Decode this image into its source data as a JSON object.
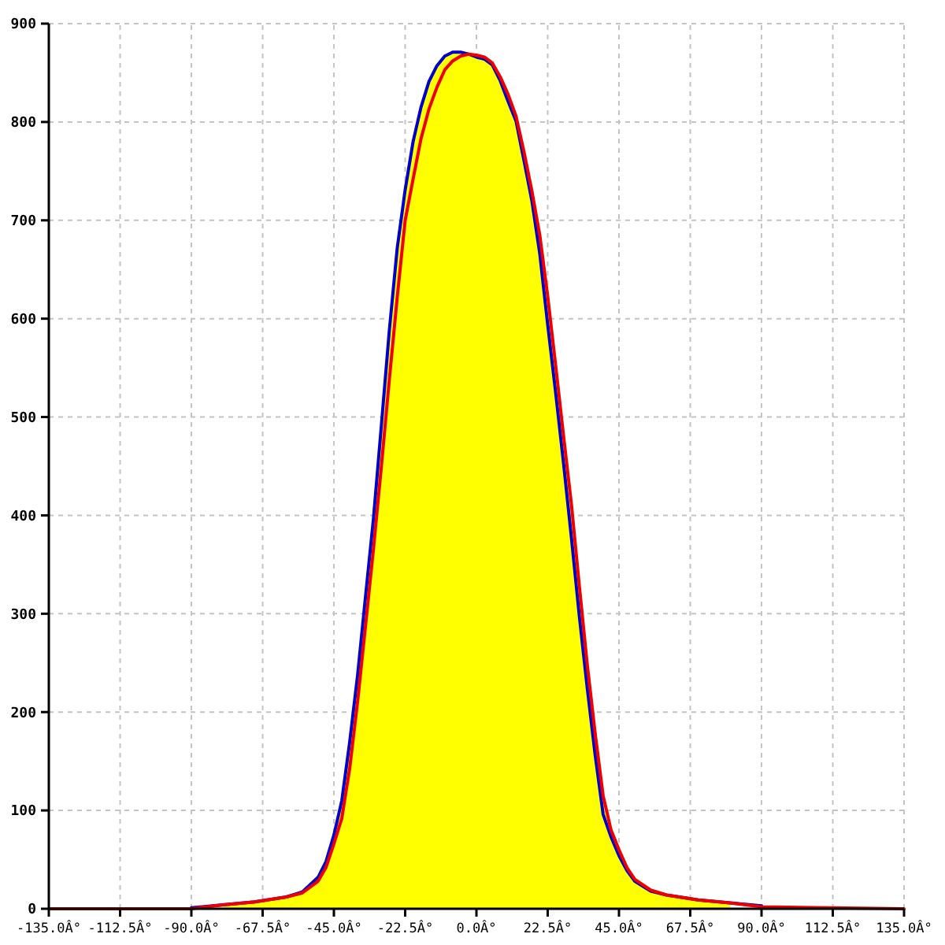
{
  "chart_data": {
    "type": "line",
    "xlim": [
      -135,
      135
    ],
    "ylim": [
      0,
      900
    ],
    "xticks": [
      {
        "value": -135,
        "label": "-135.0Â°"
      },
      {
        "value": -112.5,
        "label": "-112.5Â°"
      },
      {
        "value": -90,
        "label": "-90.0Â°"
      },
      {
        "value": -67.5,
        "label": "-67.5Â°"
      },
      {
        "value": -45,
        "label": "-45.0Â°"
      },
      {
        "value": -22.5,
        "label": "-22.5Â°"
      },
      {
        "value": 0,
        "label": "0.0Â°"
      },
      {
        "value": 22.5,
        "label": "22.5Â°"
      },
      {
        "value": 45,
        "label": "45.0Â°"
      },
      {
        "value": 67.5,
        "label": "67.5Â°"
      },
      {
        "value": 90,
        "label": "90.0Â°"
      },
      {
        "value": 112.5,
        "label": "112.5Â°"
      },
      {
        "value": 135,
        "label": "135.0Â°"
      }
    ],
    "yticks": [
      0,
      100,
      200,
      300,
      400,
      500,
      600,
      700,
      800,
      900
    ],
    "grid": true,
    "series": [
      {
        "type": "area",
        "color": "#ffff00",
        "x": [
          -80,
          -70,
          -60,
          -55,
          -50,
          -47.5,
          -45,
          -42.5,
          -40,
          -37.5,
          -35,
          -32.5,
          -30,
          -27.5,
          -25,
          -22.5,
          -20,
          -17.5,
          -15,
          -12.5,
          -10,
          -7.5,
          -5,
          -2.5,
          0,
          2.5,
          5,
          7.5,
          10,
          12.5,
          15,
          17.5,
          20,
          22.5,
          25,
          27.5,
          30,
          32.5,
          35,
          37.5,
          40,
          42.5,
          45,
          47.5,
          50,
          55,
          60,
          70,
          80
        ],
        "values": [
          4,
          7,
          12,
          17,
          32,
          48,
          75,
          110,
          170,
          238,
          318,
          397,
          492,
          588,
          672,
          731,
          780,
          815,
          841,
          857,
          867,
          871,
          871,
          869,
          868,
          866,
          860,
          846,
          828,
          806,
          772,
          730,
          685,
          623,
          553,
          481,
          411,
          328,
          248,
          178,
          115,
          80,
          60,
          42,
          30,
          19,
          14,
          9,
          6
        ]
      },
      {
        "color": "#0000cc",
        "x": [
          -90,
          -80,
          -70,
          -60,
          -55,
          -50,
          -47.5,
          -45,
          -42.5,
          -40,
          -37.5,
          -35,
          -32.5,
          -30,
          -27.5,
          -25,
          -22.5,
          -20,
          -17.5,
          -15,
          -12.5,
          -10,
          -7.5,
          -5,
          -2.5,
          0,
          2.5,
          5,
          7.5,
          10,
          12.5,
          15,
          17.5,
          20,
          22.5,
          25,
          27.5,
          30,
          32.5,
          35,
          37.5,
          40,
          42.5,
          45,
          47.5,
          50,
          55,
          60,
          70,
          80,
          90
        ],
        "values": [
          1,
          4,
          7,
          12,
          17,
          32,
          48,
          75,
          110,
          170,
          238,
          318,
          397,
          492,
          588,
          672,
          731,
          780,
          815,
          841,
          857,
          867,
          871,
          871,
          869,
          866,
          864,
          858,
          842,
          821,
          801,
          761,
          720,
          666,
          594,
          525,
          453,
          377,
          297,
          224,
          156,
          96,
          73,
          54,
          39,
          28,
          18,
          14,
          9,
          6,
          3
        ]
      },
      {
        "color": "#ee0000",
        "x": [
          -135,
          -90,
          -80,
          -70,
          -60,
          -55,
          -50,
          -47.5,
          -45,
          -42.5,
          -40,
          -37.5,
          -35,
          -32.5,
          -30,
          -27.5,
          -25,
          -22.5,
          -20,
          -17.5,
          -15,
          -12.5,
          -10,
          -7.5,
          -5,
          -2.5,
          0,
          2.5,
          5,
          7.5,
          10,
          12.5,
          15,
          17.5,
          20,
          22.5,
          25,
          27.5,
          30,
          32.5,
          35,
          37.5,
          40,
          42.5,
          45,
          47.5,
          50,
          55,
          60,
          70,
          80,
          90,
          135
        ],
        "values": [
          0,
          0,
          4,
          7,
          12,
          16,
          28,
          42,
          66,
          92,
          143,
          211,
          288,
          366,
          450,
          538,
          622,
          700,
          742,
          783,
          813,
          835,
          853,
          862,
          867,
          869,
          868,
          866,
          860,
          846,
          828,
          806,
          770,
          730,
          685,
          623,
          553,
          481,
          411,
          328,
          248,
          178,
          115,
          80,
          60,
          42,
          30,
          19,
          14,
          9,
          6,
          2,
          0
        ]
      }
    ]
  }
}
